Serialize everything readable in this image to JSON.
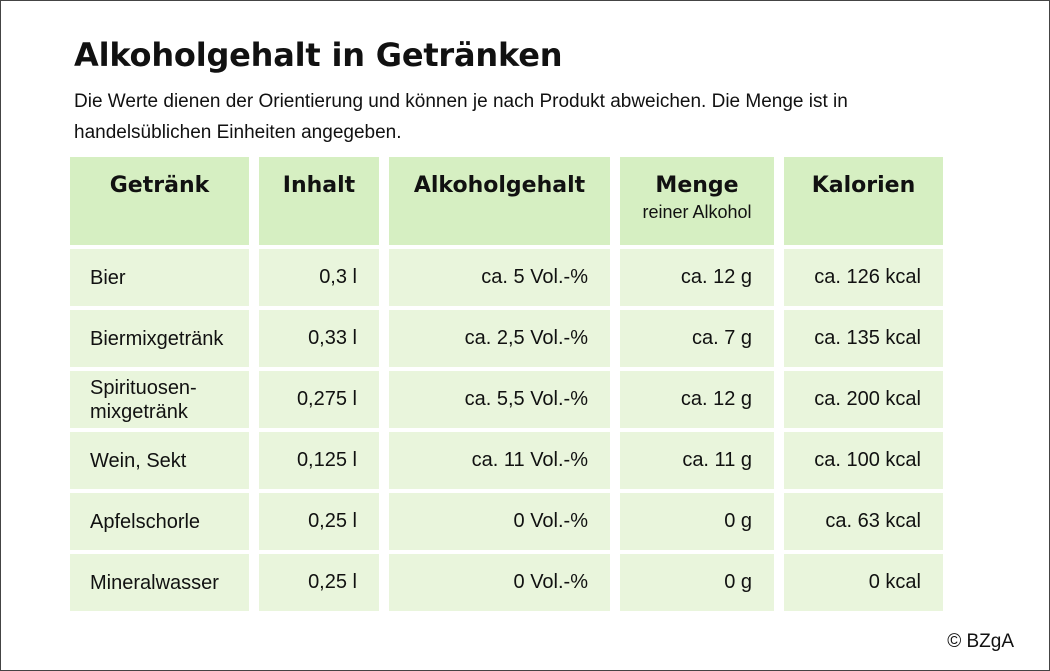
{
  "title": "Alkoholgehalt in Getränken",
  "subtitle": "Die Werte dienen der Orientierung und können je nach Produkt abweichen. Die Menge ist in handelsüblichen Einheiten angegeben.",
  "table": {
    "headers": [
      {
        "label": "Getränk",
        "sub": ""
      },
      {
        "label": "Inhalt",
        "sub": ""
      },
      {
        "label": "Alkoholgehalt",
        "sub": ""
      },
      {
        "label": "Menge",
        "sub": "reiner Alkohol"
      },
      {
        "label": "Kalorien",
        "sub": ""
      }
    ],
    "rows": [
      [
        "Bier",
        "0,3 l",
        "ca. 5 Vol.-%",
        "ca. 12 g",
        "ca. 126 kcal"
      ],
      [
        "Biermixgetränk",
        "0,33 l",
        "ca. 2,5 Vol.-%",
        "ca. 7 g",
        "ca. 135 kcal"
      ],
      [
        "Spirituosen-mixgetränk",
        "0,275 l",
        "ca. 5,5 Vol.-%",
        "ca. 12 g",
        "ca. 200 kcal"
      ],
      [
        "Wein, Sekt",
        "0,125 l",
        "ca. 11 Vol.-%",
        "ca. 11 g",
        "ca. 100 kcal"
      ],
      [
        "Apfelschorle",
        "0,25 l",
        "0 Vol.-%",
        "0 g",
        "ca. 63 kcal"
      ],
      [
        "Mineralwasser",
        "0,25 l",
        "0 Vol.-%",
        "0 g",
        "0 kcal"
      ]
    ]
  },
  "copyright": "© BZgA"
}
